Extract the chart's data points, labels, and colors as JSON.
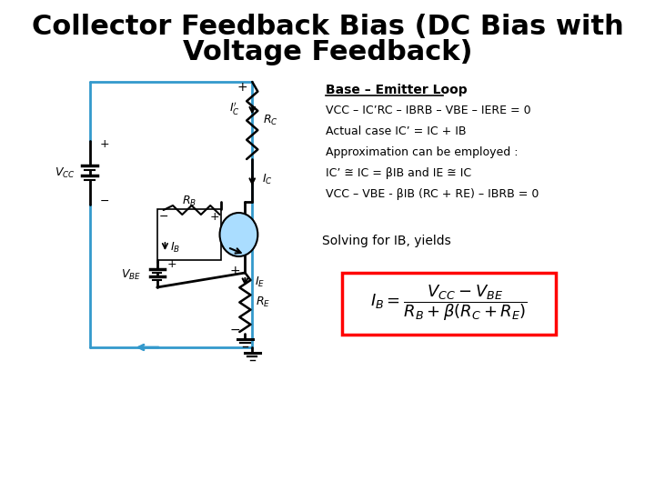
{
  "title_line1": "Collector Feedback Bias (DC Bias with",
  "title_line2": "Voltage Feedback)",
  "title_fontsize": 22,
  "background_color": "#ffffff",
  "text_color": "#000000",
  "circuit_color": "#3399cc",
  "text_block": {
    "header": "Base – Emitter Loop",
    "lines": [
      "VCC – IC’RC – IBRB – VBE – IERE = 0",
      "Actual case IC’ = IC + IB",
      "Approximation can be employed :",
      "IC’ ≅ IC = βIB and IE ≅ IC",
      "VCC – VBE - βIB (RC + RE) – IBRB = 0"
    ],
    "solving": "Solving for IB, yields"
  },
  "formula": "$I_B = \\dfrac{V_{CC} - V_{BE}}{R_B + \\beta(R_C + R_E)}$"
}
